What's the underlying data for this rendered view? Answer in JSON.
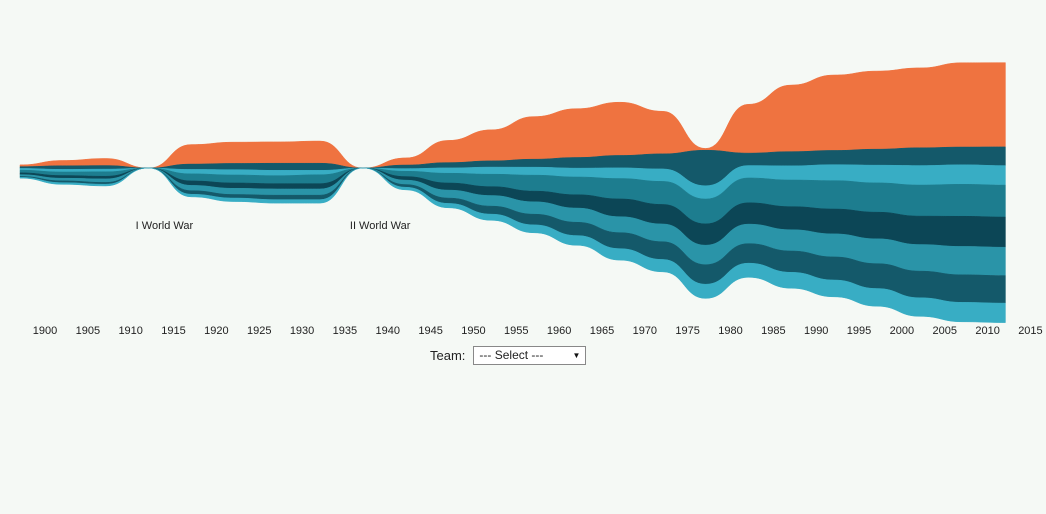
{
  "colors": {
    "orange": "#ef7340",
    "dark": "#14596a",
    "mid": "#1d7d8f",
    "light": "#38adc4",
    "deep": "#0c4656",
    "teal": "#2a94a8"
  },
  "controls": {
    "team_label": "Team:",
    "select_value": "--- Select ---",
    "caret_icon": "caret-down-icon"
  },
  "chart_data": {
    "type": "area",
    "layout": "streamgraph",
    "title": "",
    "xlabel": "",
    "ylabel": "",
    "x": [
      1900,
      1905,
      1910,
      1915,
      1920,
      1925,
      1930,
      1935,
      1940,
      1945,
      1950,
      1955,
      1960,
      1965,
      1970,
      1975,
      1980,
      1985,
      1990,
      1995,
      2000,
      2005,
      2010,
      2015
    ],
    "xlim": [
      1900,
      2016
    ],
    "xticks": [
      "1900",
      "1905",
      "1910",
      "1915",
      "1920",
      "1925",
      "1930",
      "1935",
      "1940",
      "1945",
      "1950",
      "1955",
      "1960",
      "1965",
      "1970",
      "1975",
      "1980",
      "1985",
      "1990",
      "1995",
      "2000",
      "2005",
      "2010",
      "2015"
    ],
    "annotations": [
      {
        "text": "I World War",
        "x": 1917
      },
      {
        "text": "II World War",
        "x": 1942
      }
    ],
    "series": [
      {
        "color": "#ef7340",
        "values": [
          2,
          6,
          8,
          0,
          22,
          24,
          24,
          25,
          0,
          8,
          25,
          35,
          48,
          55,
          60,
          48,
          2,
          55,
          75,
          85,
          88,
          90,
          95,
          95
        ]
      },
      {
        "color": "#14596a",
        "values": [
          2,
          4,
          4,
          0,
          6,
          7,
          8,
          8,
          0,
          4,
          6,
          7,
          9,
          12,
          14,
          17,
          40,
          14,
          16,
          16,
          18,
          20,
          20,
          21
        ]
      },
      {
        "color": "#38adc4",
        "values": [
          2,
          3,
          3,
          0,
          5,
          6,
          6,
          5,
          0,
          3,
          6,
          8,
          9,
          10,
          12,
          14,
          15,
          14,
          16,
          18,
          20,
          22,
          22,
          22
        ]
      },
      {
        "color": "#1d7d8f",
        "values": [
          3,
          4,
          5,
          0,
          8,
          9,
          9,
          10,
          0,
          6,
          11,
          14,
          18,
          20,
          23,
          26,
          28,
          28,
          30,
          32,
          33,
          35,
          36,
          36
        ]
      },
      {
        "color": "#0c4656",
        "values": [
          2,
          3,
          3,
          0,
          5,
          6,
          6,
          6,
          0,
          4,
          8,
          10,
          12,
          15,
          20,
          22,
          24,
          24,
          26,
          28,
          30,
          32,
          34,
          34
        ]
      },
      {
        "color": "#2a94a8",
        "values": [
          2,
          3,
          4,
          0,
          6,
          7,
          7,
          7,
          0,
          5,
          9,
          12,
          14,
          16,
          18,
          20,
          22,
          22,
          24,
          26,
          28,
          30,
          32,
          32
        ]
      },
      {
        "color": "#14596a",
        "values": [
          1,
          2,
          2,
          0,
          4,
          4,
          5,
          5,
          0,
          3,
          6,
          9,
          12,
          15,
          18,
          20,
          22,
          22,
          24,
          26,
          28,
          30,
          31,
          31
        ]
      },
      {
        "color": "#38adc4",
        "values": [
          1,
          2,
          2,
          0,
          3,
          4,
          4,
          4,
          0,
          3,
          5,
          7,
          9,
          11,
          13,
          14,
          16,
          16,
          18,
          19,
          20,
          21,
          22,
          22
        ]
      }
    ]
  }
}
